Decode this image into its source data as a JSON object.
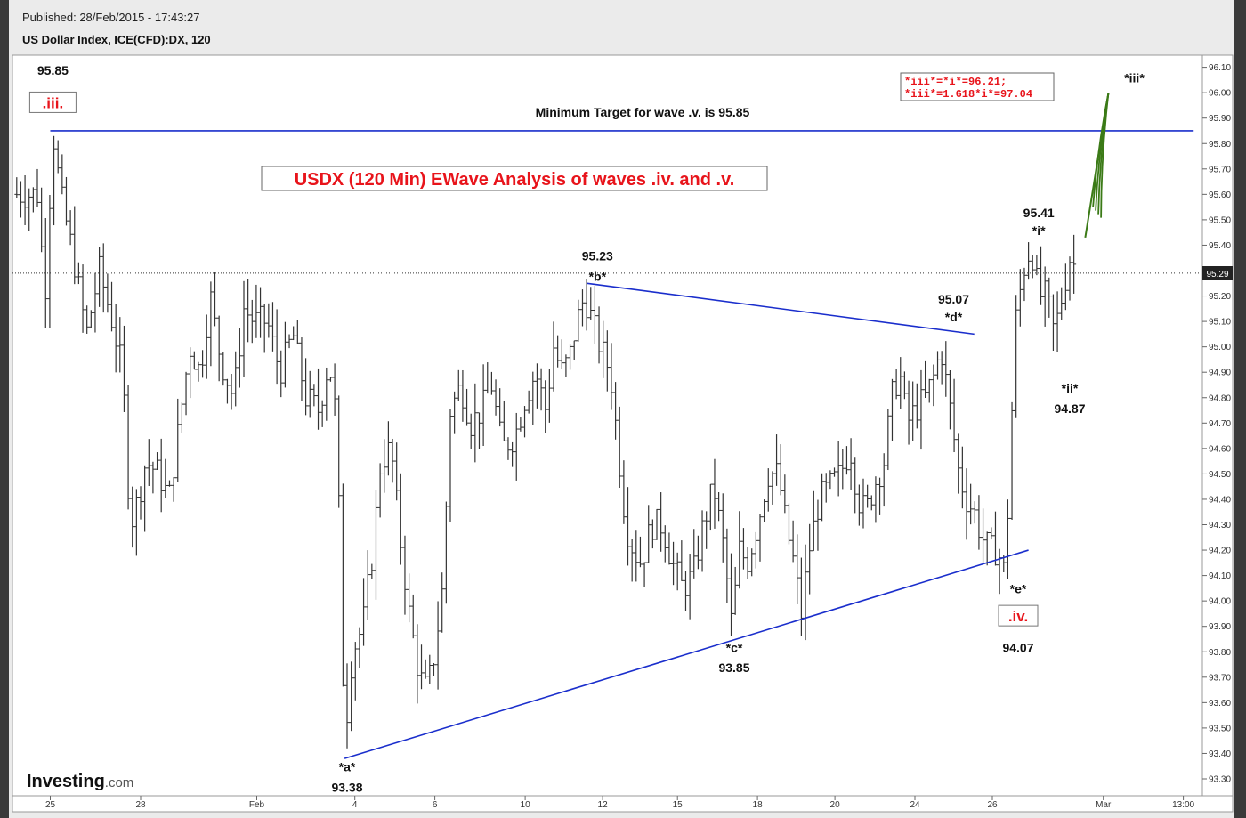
{
  "header": {
    "published": "Published: 28/Feb/2015 - 17:43:27",
    "instrument": "US Dollar Index, ICE(CFD):DX, 120"
  },
  "colors": {
    "background": "#ffffff",
    "bars": "#333333",
    "trendlines": "#1a2ecc",
    "label_red": "#e8141b",
    "projection_green": "#3b7a17"
  },
  "branding": {
    "logo_word": "Investing",
    "logo_suffix": ".com"
  },
  "chart_data": {
    "type": "ohlc_bar",
    "title": "USDX (120 Min) EWave Analysis of waves .iv. and .v.",
    "note": "Minimum Target for wave .v. is 95.85",
    "targets_box": [
      "*iii*=*i*=96.21;",
      "*iii*=1.618*i*=97.04"
    ],
    "ylim": [
      93.2,
      96.15
    ],
    "y_ticks": [
      93.3,
      93.4,
      93.5,
      93.6,
      93.7,
      93.8,
      93.9,
      94.0,
      94.1,
      94.2,
      94.3,
      94.4,
      94.5,
      94.6,
      94.7,
      94.8,
      94.9,
      95.0,
      95.1,
      95.2,
      95.3,
      95.4,
      95.5,
      95.6,
      95.7,
      95.8,
      95.9,
      96.0,
      96.1
    ],
    "y_tick_labels": [
      "93.30",
      "93.40",
      "93.50",
      "93.60",
      "93.70",
      "93.80",
      "93.90",
      "94.00",
      "94.10",
      "94.20",
      "94.30",
      "94.40",
      "94.50",
      "94.60",
      "94.70",
      "94.80",
      "94.90",
      "95.00",
      "95.10",
      "95.20",
      "95.30",
      "95.40",
      "95.50",
      "95.60",
      "95.70",
      "95.80",
      "95.90",
      "96.00",
      "96.10"
    ],
    "x_ticks": [
      {
        "label": "25",
        "t": 0.5
      },
      {
        "label": "28",
        "t": 4
      },
      {
        "label": "Feb",
        "t": 8.5
      },
      {
        "label": "4",
        "t": 12.3
      },
      {
        "label": "6",
        "t": 15.4
      },
      {
        "label": "10",
        "t": 18.9
      },
      {
        "label": "12",
        "t": 21.9
      },
      {
        "label": "15",
        "t": 24.8
      },
      {
        "label": "18",
        "t": 27.9
      },
      {
        "label": "20",
        "t": 30.9
      },
      {
        "label": "24",
        "t": 34.0
      },
      {
        "label": "26",
        "t": 37.0
      },
      {
        "label": "Mar",
        "t": 41.3
      },
      {
        "label": "13:00",
        "t": 44.4
      }
    ],
    "current_price": 95.29,
    "current_price_label": "95.29",
    "waypoints": [
      [
        0,
        95.6
      ],
      [
        0.3,
        95.2
      ],
      [
        0.6,
        95.85
      ],
      [
        0.9,
        95.6
      ],
      [
        1.4,
        95.35
      ],
      [
        1.9,
        95.05
      ],
      [
        2.4,
        95.3
      ],
      [
        2.9,
        95.1
      ],
      [
        3.3,
        94.9
      ],
      [
        3.6,
        94.3
      ],
      [
        3.9,
        94.4
      ],
      [
        4.2,
        94.55
      ],
      [
        4.7,
        94.5
      ],
      [
        5.1,
        94.4
      ],
      [
        5.5,
        94.7
      ],
      [
        5.9,
        95.0
      ],
      [
        6.3,
        94.9
      ],
      [
        6.7,
        95.2
      ],
      [
        7.1,
        94.95
      ],
      [
        7.6,
        94.8
      ],
      [
        8.0,
        95.15
      ],
      [
        8.4,
        95.1
      ],
      [
        8.9,
        95.1
      ],
      [
        9.4,
        94.9
      ],
      [
        9.9,
        95.05
      ],
      [
        10.4,
        94.8
      ],
      [
        10.9,
        94.75
      ],
      [
        11.3,
        94.95
      ],
      [
        11.6,
        94.7
      ],
      [
        11.9,
        93.45
      ],
      [
        12.2,
        93.8
      ],
      [
        12.6,
        93.9
      ],
      [
        13.0,
        94.2
      ],
      [
        13.3,
        94.55
      ],
      [
        13.7,
        94.6
      ],
      [
        14.0,
        94.3
      ],
      [
        14.4,
        93.95
      ],
      [
        14.8,
        93.7
      ],
      [
        15.1,
        93.65
      ],
      [
        15.4,
        93.8
      ],
      [
        15.7,
        94.05
      ],
      [
        16.0,
        94.75
      ],
      [
        16.4,
        94.85
      ],
      [
        16.8,
        94.7
      ],
      [
        17.2,
        94.75
      ],
      [
        17.6,
        94.85
      ],
      [
        18.0,
        94.6
      ],
      [
        18.5,
        94.65
      ],
      [
        18.9,
        94.8
      ],
      [
        19.3,
        94.9
      ],
      [
        19.7,
        94.75
      ],
      [
        20.0,
        95.0
      ],
      [
        20.3,
        94.9
      ],
      [
        20.6,
        94.95
      ],
      [
        20.9,
        95.1
      ],
      [
        21.2,
        95.2
      ],
      [
        21.5,
        95.1
      ],
      [
        21.8,
        95.0
      ],
      [
        22.2,
        94.9
      ],
      [
        22.5,
        94.6
      ],
      [
        22.8,
        94.3
      ],
      [
        23.1,
        94.2
      ],
      [
        23.4,
        94.15
      ],
      [
        23.8,
        94.3
      ],
      [
        24.2,
        94.3
      ],
      [
        24.6,
        94.15
      ],
      [
        25.0,
        94.05
      ],
      [
        25.4,
        94.1
      ],
      [
        25.8,
        94.3
      ],
      [
        26.2,
        94.45
      ],
      [
        26.6,
        94.2
      ],
      [
        26.9,
        93.9
      ],
      [
        27.2,
        94.2
      ],
      [
        27.5,
        94.15
      ],
      [
        27.9,
        94.3
      ],
      [
        28.3,
        94.5
      ],
      [
        28.7,
        94.5
      ],
      [
        29.0,
        94.3
      ],
      [
        29.3,
        94.15
      ],
      [
        29.6,
        93.95
      ],
      [
        29.9,
        94.2
      ],
      [
        30.3,
        94.4
      ],
      [
        30.7,
        94.45
      ],
      [
        31.1,
        94.5
      ],
      [
        31.5,
        94.6
      ],
      [
        31.8,
        94.4
      ],
      [
        32.1,
        94.35
      ],
      [
        32.4,
        94.45
      ],
      [
        32.8,
        94.55
      ],
      [
        33.1,
        94.8
      ],
      [
        33.4,
        94.9
      ],
      [
        33.7,
        94.7
      ],
      [
        34.0,
        94.75
      ],
      [
        34.4,
        94.8
      ],
      [
        34.8,
        94.9
      ],
      [
        35.0,
        95.0
      ],
      [
        35.3,
        94.8
      ],
      [
        35.7,
        94.5
      ],
      [
        36.0,
        94.4
      ],
      [
        36.3,
        94.35
      ],
      [
        36.6,
        94.25
      ],
      [
        36.9,
        94.2
      ],
      [
        37.2,
        94.2
      ],
      [
        37.5,
        94.1
      ],
      [
        37.7,
        94.6
      ],
      [
        37.9,
        95.1
      ],
      [
        38.2,
        95.3
      ],
      [
        38.5,
        95.4
      ],
      [
        38.8,
        95.2
      ],
      [
        39.1,
        95.2
      ],
      [
        39.4,
        95.05
      ],
      [
        39.7,
        95.2
      ],
      [
        40.0,
        95.35
      ],
      [
        40.3,
        95.3
      ]
    ],
    "trendlines": [
      {
        "name": "triangle-top",
        "from": [
          21.3,
          95.25
        ],
        "to": [
          36.3,
          95.05
        ]
      },
      {
        "name": "triangle-bottom",
        "from": [
          11.9,
          93.38
        ],
        "to": [
          38.4,
          94.2
        ]
      },
      {
        "name": "target-line",
        "from": [
          0.5,
          95.85
        ],
        "to": [
          44.8,
          95.85
        ]
      }
    ],
    "projection": {
      "from_t": 40.6,
      "from_v": 95.43,
      "to_t": 41.5,
      "to_v": 96.0,
      "bottom_t": 40.9,
      "bottom_v": 95.55
    },
    "labels": [
      {
        "text": "95.85",
        "t": 0.6,
        "v": 96.07,
        "kind": "price"
      },
      {
        "text": ".iii.",
        "t": 0.6,
        "v": 95.95,
        "kind": "boxed"
      },
      {
        "text": "95.23",
        "t": 21.7,
        "v": 95.34,
        "kind": "price"
      },
      {
        "text": "*b*",
        "t": 21.7,
        "v": 95.26,
        "kind": "wave"
      },
      {
        "text": "*a*",
        "t": 12.0,
        "v": 93.33,
        "kind": "wave"
      },
      {
        "text": "93.38",
        "t": 12.0,
        "v": 93.25,
        "kind": "price"
      },
      {
        "text": "*c*",
        "t": 27.0,
        "v": 93.8,
        "kind": "wave"
      },
      {
        "text": "93.85",
        "t": 27.0,
        "v": 93.72,
        "kind": "price"
      },
      {
        "text": "95.07",
        "t": 35.5,
        "v": 95.17,
        "kind": "price"
      },
      {
        "text": "*d*",
        "t": 35.5,
        "v": 95.1,
        "kind": "wave"
      },
      {
        "text": "95.41",
        "t": 38.8,
        "v": 95.51,
        "kind": "price"
      },
      {
        "text": "*i*",
        "t": 38.8,
        "v": 95.44,
        "kind": "wave"
      },
      {
        "text": "*ii*",
        "t": 40.0,
        "v": 94.82,
        "kind": "wave"
      },
      {
        "text": "94.87",
        "t": 40.0,
        "v": 94.74,
        "kind": "price"
      },
      {
        "text": "*e*",
        "t": 38.0,
        "v": 94.03,
        "kind": "wave"
      },
      {
        "text": ".iv.",
        "t": 38.0,
        "v": 93.93,
        "kind": "boxed"
      },
      {
        "text": "94.07",
        "t": 38.0,
        "v": 93.8,
        "kind": "price"
      },
      {
        "text": "*iii*",
        "t": 42.5,
        "v": 96.04,
        "kind": "wave"
      }
    ]
  }
}
